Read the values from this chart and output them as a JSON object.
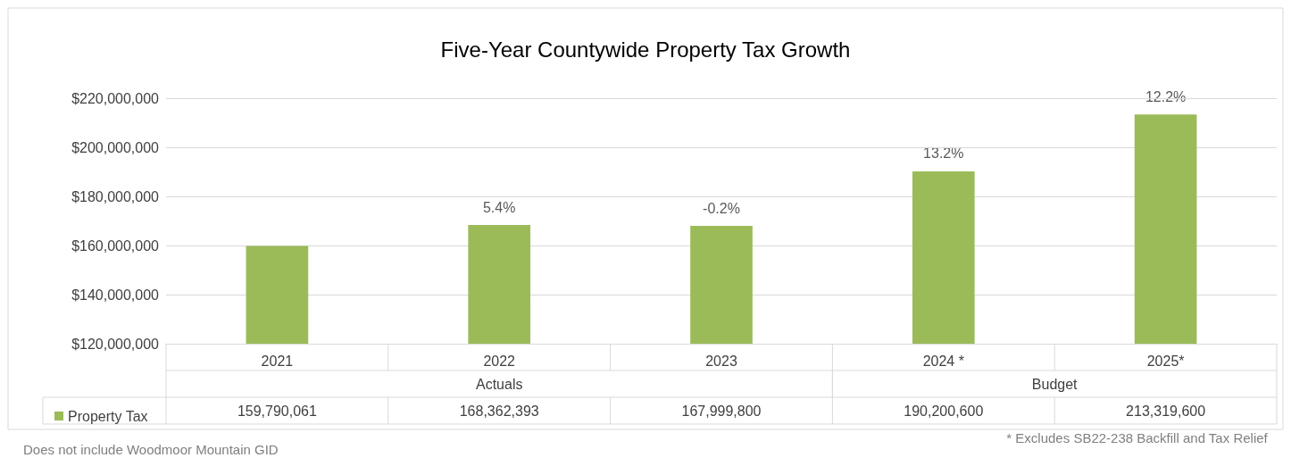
{
  "chart_data": {
    "type": "bar",
    "title": "Five-Year Countywide Property Tax Growth",
    "categories": [
      "2021",
      "2022",
      "2023",
      "2024 *",
      "2025*"
    ],
    "series": [
      {
        "name": "Property Tax",
        "color": "#9bbb59",
        "values": [
          159790061,
          168362393,
          167999800,
          190200600,
          213319600
        ],
        "value_labels": [
          "159,790,061",
          "168,362,393",
          "167,999,800",
          "190,200,600",
          "213,319,600"
        ]
      }
    ],
    "ylim": [
      120000000,
      220000000
    ],
    "yticks": [
      {
        "value": 120000000,
        "label": "$120,000,000"
      },
      {
        "value": 140000000,
        "label": "$140,000,000"
      },
      {
        "value": 160000000,
        "label": "$160,000,000"
      },
      {
        "value": 180000000,
        "label": "$180,000,000"
      },
      {
        "value": 200000000,
        "label": "$200,000,000"
      },
      {
        "value": 220000000,
        "label": "$220,000,000"
      }
    ],
    "grid": "y",
    "legend": "bottom left",
    "annotations": [
      "Actuals",
      "Budget",
      {
        "text": "5.4%",
        "x": "2022",
        "y": 168362393
      },
      {
        "text": "-0.2%",
        "x": "2023",
        "y": 167999800
      },
      {
        "text": "13.2%",
        "x": "2024 *",
        "y": 190200600
      },
      {
        "text": "12.2%",
        "x": "2025*",
        "y": 213319600
      },
      "Does not include Woodmoor Mountain GID",
      "* Excludes SB22-238 Backfill and Tax Relief"
    ]
  }
}
